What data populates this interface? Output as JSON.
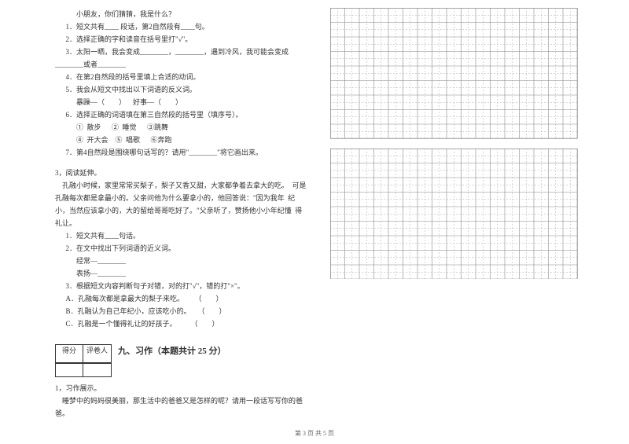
{
  "left": {
    "q1_intro": "小朋友，你们猜猜，我是什么？",
    "q1_1": "1．短文共有____ 段话，第2自然段有____句。",
    "q1_2": "2．选择正确的字和读音在括号里打\"√\"。",
    "q1_3a": "3．太阳一晒，我会变成________，________，遇到冷风，我可能会变成",
    "q1_3b": "________或者________",
    "q1_4": "4．在第2自然段的括号里填上合适的动词。",
    "q1_5": "5．我会从短文中找出以下词语的反义词。",
    "q1_5b": "暴躁—（        ）    好事—（        ）",
    "q1_6": "6．选择正确的词语填在第三自然段的括号里（填序号）。",
    "q1_6b": "①  散步      ②  睡觉      ③跳舞",
    "q1_6c": "④  开大会    ⑤  唱歌      ⑥奔跑",
    "q1_7": "7．第4自然段是围绕哪句话写的？请用\"________\"将它画出来。",
    "q3_title": "3，阅读延伸。",
    "q3_p": "    孔融小时候，家里常常买梨子，梨子又香又甜，大家都争着去拿大的吃。  可是孔融每次都是拿最小的。父亲问他为什么要拿小的，他回答说：\"因为我年  纪小，当然应该拿小的，大的留给哥哥吃好了。\"父亲听了，赞扬他小小年纪懂  得礼让。",
    "q3_1": "1．短文共有____句话。",
    "q3_2": "2．在文中找出下列词语的近义词。",
    "q3_2b": "经常—________",
    "q3_2c": "表扬—________",
    "q3_3": "3．根据短文内容判断句子对错，对的打\"√\"，错的打\"×\"。",
    "q3_3a": "A．孔融每次都是拿最大的梨子来吃。      （        ）",
    "q3_3b": "B．孔融认为自己年纪小，应该吃小的。    （        ）",
    "q3_3c": "C．孔融是一个懂得礼让的好孩子。        （        ）",
    "score": {
      "label1": "得分",
      "label2": "评卷人"
    },
    "section9": "九、习作（本题共计 25 分）",
    "xi_1": "1，习作展示。",
    "xi_1b": "    睡梦中的妈妈很美丽，那生活中的爸爸又是怎样的呢？请用一段话写写你的爸爸。"
  },
  "grid": {
    "cols": 17,
    "rows": 9,
    "cellSize": 18.5,
    "borderColor": "#888888",
    "dashColor": "#aaaaaa",
    "strokeWidth": 0.6
  },
  "footer": "第 3 页 共 5 页",
  "colors": {
    "text": "#333333",
    "background": "#ffffff"
  }
}
